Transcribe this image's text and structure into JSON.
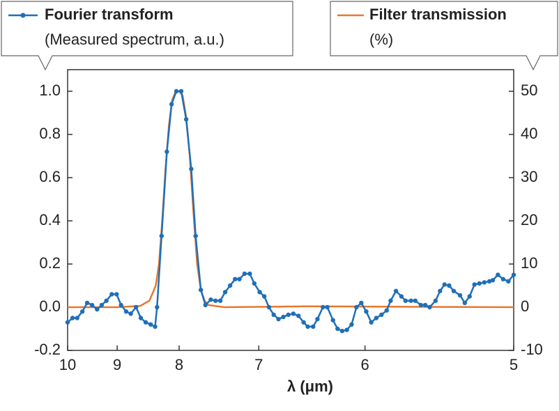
{
  "chart_data": {
    "type": "line",
    "xscale": "reciprocal",
    "grid": false,
    "xlabel": "λ (μm)",
    "y_label": "(Measured spectrum, a.u.)",
    "y2_label": "(%)",
    "xlim": [
      10,
      5
    ],
    "xticks": [
      10,
      9,
      8,
      7,
      6,
      5
    ],
    "ylim": [
      -0.2,
      1.1
    ],
    "yticks": [
      -0.2,
      {
        "value": 0,
        "label": "0.0"
      },
      0.2,
      0.4,
      0.6,
      0.8,
      {
        "value": 1,
        "label": "1.0"
      }
    ],
    "y2lim": [
      -10,
      55
    ],
    "y2ticks": [
      -10,
      0,
      10,
      20,
      30,
      40,
      50
    ],
    "series": [
      {
        "name": "Fourier transform",
        "color": "#1f6fb8",
        "markers": true,
        "x": [
          10.0,
          9.89,
          9.79,
          9.68,
          9.58,
          9.48,
          9.38,
          9.29,
          9.2,
          9.1,
          9.01,
          8.93,
          8.84,
          8.76,
          8.67,
          8.59,
          8.51,
          8.43,
          8.36,
          8.33,
          8.26,
          8.18,
          8.11,
          8.04,
          7.97,
          7.9,
          7.83,
          7.77,
          7.7,
          7.64,
          7.57,
          7.51,
          7.45,
          7.39,
          7.33,
          7.27,
          7.22,
          7.16,
          7.1,
          7.05,
          6.99,
          6.94,
          6.89,
          6.84,
          6.79,
          6.74,
          6.69,
          6.64,
          6.59,
          6.54,
          6.5,
          6.45,
          6.41,
          6.36,
          6.32,
          6.27,
          6.23,
          6.19,
          6.15,
          6.11,
          6.07,
          6.03,
          5.99,
          5.95,
          5.91,
          5.87,
          5.83,
          5.8,
          5.76,
          5.72,
          5.69,
          5.65,
          5.62,
          5.58,
          5.55,
          5.52,
          5.48,
          5.45,
          5.42,
          5.39,
          5.36,
          5.32,
          5.29,
          5.26,
          5.23,
          5.2,
          5.17,
          5.14,
          5.12,
          5.09,
          5.06,
          5.03,
          5.0
        ],
        "values": [
          -0.07,
          -0.05,
          -0.05,
          -0.02,
          0.02,
          0.01,
          -0.01,
          0.01,
          0.03,
          0.06,
          0.06,
          0.01,
          -0.02,
          -0.03,
          0.0,
          -0.05,
          -0.07,
          -0.08,
          -0.09,
          0.0,
          0.33,
          0.72,
          0.94,
          1.0,
          1.0,
          0.87,
          0.64,
          0.33,
          0.08,
          0.01,
          0.035,
          0.03,
          0.03,
          0.07,
          0.1,
          0.13,
          0.13,
          0.155,
          0.155,
          0.11,
          0.07,
          0.05,
          0.0,
          -0.035,
          -0.055,
          -0.045,
          -0.035,
          -0.03,
          -0.04,
          -0.07,
          -0.09,
          -0.09,
          -0.055,
          0.0,
          0.0,
          -0.06,
          -0.1,
          -0.11,
          -0.105,
          -0.08,
          0.0,
          0.02,
          -0.02,
          -0.07,
          -0.05,
          -0.035,
          -0.015,
          0.03,
          0.075,
          0.05,
          0.03,
          0.03,
          0.03,
          0.01,
          0.01,
          0.0,
          0.03,
          0.075,
          0.105,
          0.1,
          0.075,
          0.055,
          0.02,
          0.05,
          0.105,
          0.11,
          0.115,
          0.12,
          0.125,
          0.15,
          0.13,
          0.12,
          0.15
        ]
      },
      {
        "name": "Filter transmission",
        "color": "#e8772e",
        "axis": "y2",
        "markers": false,
        "x": [
          10,
          9,
          8.6,
          8.45,
          8.35,
          8.3,
          8.25,
          8.2,
          8.15,
          8.1,
          8.05,
          8.0,
          7.95,
          7.9,
          7.85,
          7.8,
          7.75,
          7.7,
          7.65,
          7.6,
          7.4,
          6.5,
          5
        ],
        "values": [
          0,
          0,
          0.3,
          1.5,
          5,
          10,
          20,
          32,
          42,
          48,
          50,
          50,
          49,
          44,
          35,
          22,
          10,
          4,
          1.5,
          0.5,
          0,
          0.2,
          0
        ]
      }
    ]
  }
}
